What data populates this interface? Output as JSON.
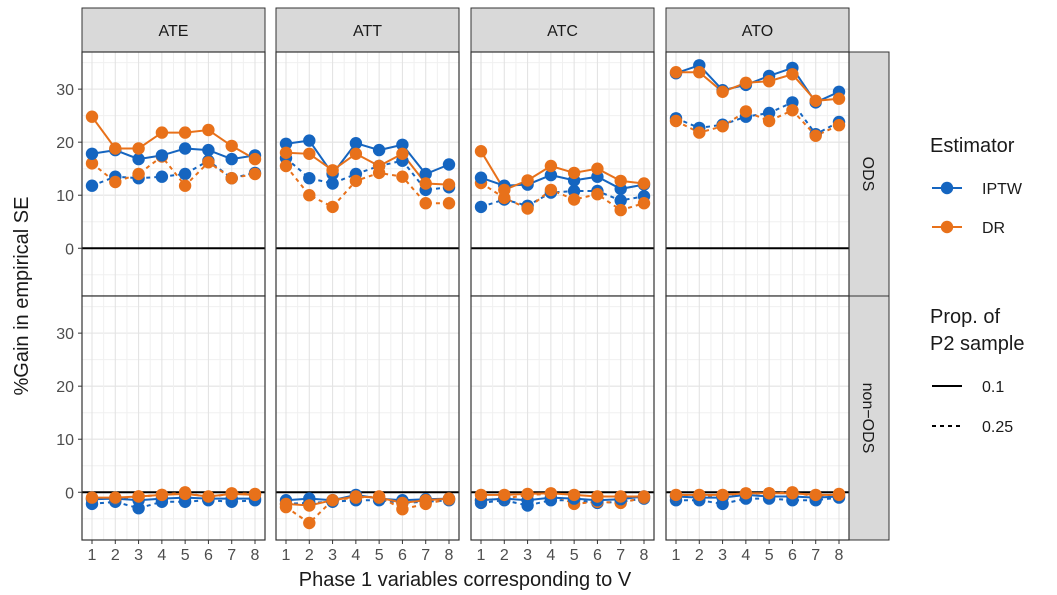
{
  "chart_data": {
    "type": "line",
    "title": "",
    "xlabel": "Phase 1 variables corresponding to V",
    "ylabel": "%Gain in empirical SE",
    "x": [
      1,
      2,
      3,
      4,
      5,
      6,
      7,
      8
    ],
    "x_ticks": [
      "1",
      "2",
      "3",
      "4",
      "5",
      "6",
      "7",
      "8"
    ],
    "ylim": [
      -9,
      37
    ],
    "y_ticks": [
      0,
      10,
      20,
      30
    ],
    "y_tick_labels": [
      "0",
      "10",
      "20",
      "30"
    ],
    "grid": true,
    "reference_line": 0,
    "facet_columns": [
      "ATE",
      "ATT",
      "ATC",
      "ATO"
    ],
    "facet_rows": [
      "ODS",
      "non−ODS"
    ],
    "legend": {
      "placement": "right",
      "estimator_title": "Estimator",
      "estimators": [
        {
          "name": "IPTW",
          "color": "#1565c0"
        },
        {
          "name": "DR",
          "color": "#e8711a"
        }
      ],
      "proportion_title_line1": "Prop. of",
      "proportion_title_line2": "P2 sample",
      "proportions": [
        {
          "name": "0.1",
          "linetype": "solid"
        },
        {
          "name": "0.25",
          "linetype": "dashed"
        }
      ]
    },
    "panels": [
      {
        "row": "ODS",
        "col": "ATE",
        "series": [
          {
            "estimator": "IPTW",
            "prop": "0.1",
            "values": [
              17.8,
              18.5,
              16.8,
              17.5,
              18.8,
              18.5,
              16.8,
              17.5
            ]
          },
          {
            "estimator": "IPTW",
            "prop": "0.25",
            "values": [
              11.8,
              13.5,
              13.2,
              13.5,
              14.0,
              16.5,
              13.2,
              14.2
            ]
          },
          {
            "estimator": "DR",
            "prop": "0.1",
            "values": [
              24.8,
              18.8,
              18.8,
              21.8,
              21.8,
              22.3,
              19.3,
              16.8
            ]
          },
          {
            "estimator": "DR",
            "prop": "0.25",
            "values": [
              16.0,
              12.5,
              14.0,
              17.3,
              11.8,
              16.2,
              13.2,
              14.0
            ]
          }
        ]
      },
      {
        "row": "ODS",
        "col": "ATT",
        "series": [
          {
            "estimator": "IPTW",
            "prop": "0.1",
            "values": [
              19.7,
              20.3,
              14.0,
              19.8,
              18.5,
              19.5,
              14.0,
              15.8
            ]
          },
          {
            "estimator": "IPTW",
            "prop": "0.25",
            "values": [
              17.0,
              13.2,
              12.2,
              14.0,
              15.5,
              16.5,
              11.0,
              11.5
            ]
          },
          {
            "estimator": "DR",
            "prop": "0.1",
            "values": [
              18.0,
              17.8,
              14.7,
              17.8,
              15.5,
              17.8,
              12.2,
              12.0
            ]
          },
          {
            "estimator": "DR",
            "prop": "0.25",
            "values": [
              15.5,
              10.0,
              7.8,
              12.7,
              14.2,
              13.5,
              8.5,
              8.5
            ]
          }
        ]
      },
      {
        "row": "ODS",
        "col": "ATC",
        "series": [
          {
            "estimator": "IPTW",
            "prop": "0.1",
            "values": [
              13.3,
              11.8,
              12.0,
              13.8,
              12.8,
              13.5,
              11.2,
              12.0
            ]
          },
          {
            "estimator": "IPTW",
            "prop": "0.25",
            "values": [
              7.8,
              9.2,
              8.0,
              10.5,
              10.8,
              10.8,
              9.0,
              9.8
            ]
          },
          {
            "estimator": "DR",
            "prop": "0.1",
            "values": [
              18.3,
              11.0,
              12.8,
              15.5,
              14.2,
              15.0,
              12.7,
              12.2
            ]
          },
          {
            "estimator": "DR",
            "prop": "0.25",
            "values": [
              12.3,
              9.5,
              7.5,
              11.0,
              9.2,
              10.2,
              7.2,
              8.5
            ]
          }
        ]
      },
      {
        "row": "ODS",
        "col": "ATO",
        "series": [
          {
            "estimator": "IPTW",
            "prop": "0.1",
            "values": [
              33.0,
              34.5,
              29.8,
              30.8,
              32.5,
              34.0,
              27.5,
              29.5
            ]
          },
          {
            "estimator": "IPTW",
            "prop": "0.25",
            "values": [
              24.5,
              22.7,
              23.3,
              24.8,
              25.5,
              27.5,
              21.5,
              23.8
            ]
          },
          {
            "estimator": "DR",
            "prop": "0.1",
            "values": [
              33.2,
              33.2,
              29.5,
              31.2,
              31.5,
              32.8,
              27.8,
              28.2
            ]
          },
          {
            "estimator": "DR",
            "prop": "0.25",
            "values": [
              24.0,
              21.8,
              23.0,
              25.8,
              24.0,
              26.0,
              21.2,
              23.2
            ]
          }
        ]
      },
      {
        "row": "non−ODS",
        "col": "ATE",
        "series": [
          {
            "estimator": "IPTW",
            "prop": "0.1",
            "values": [
              -1.3,
              -1.2,
              -1.5,
              -1.2,
              -1.0,
              -1.2,
              -1.2,
              -1.2
            ]
          },
          {
            "estimator": "IPTW",
            "prop": "0.25",
            "values": [
              -2.2,
              -1.8,
              -3.0,
              -1.8,
              -1.8,
              -1.5,
              -1.8,
              -1.5
            ]
          },
          {
            "estimator": "DR",
            "prop": "0.1",
            "values": [
              -1.0,
              -1.0,
              -0.8,
              -0.5,
              -0.3,
              -0.8,
              -0.3,
              -0.5
            ]
          },
          {
            "estimator": "DR",
            "prop": "0.25",
            "values": [
              -1.2,
              -1.2,
              -0.8,
              -0.5,
              0.0,
              -1.0,
              -0.2,
              -0.3
            ]
          }
        ]
      },
      {
        "row": "non−ODS",
        "col": "ATT",
        "series": [
          {
            "estimator": "IPTW",
            "prop": "0.1",
            "values": [
              -1.5,
              -1.2,
              -1.5,
              -0.5,
              -1.2,
              -1.5,
              -1.3,
              -1.2
            ]
          },
          {
            "estimator": "IPTW",
            "prop": "0.25",
            "values": [
              -2.2,
              -2.0,
              -1.8,
              -1.5,
              -1.5,
              -2.0,
              -1.8,
              -1.5
            ]
          },
          {
            "estimator": "DR",
            "prop": "0.1",
            "values": [
              -2.2,
              -2.5,
              -1.5,
              -0.8,
              -1.0,
              -2.0,
              -1.5,
              -1.2
            ]
          },
          {
            "estimator": "DR",
            "prop": "0.25",
            "values": [
              -2.8,
              -5.8,
              -1.5,
              -1.0,
              -0.8,
              -3.2,
              -2.2,
              -1.3
            ]
          }
        ]
      },
      {
        "row": "non−ODS",
        "col": "ATC",
        "series": [
          {
            "estimator": "IPTW",
            "prop": "0.1",
            "values": [
              -1.5,
              -1.2,
              -1.5,
              -1.0,
              -1.2,
              -1.5,
              -1.3,
              -0.8
            ]
          },
          {
            "estimator": "IPTW",
            "prop": "0.25",
            "values": [
              -2.0,
              -1.5,
              -2.5,
              -1.5,
              -1.5,
              -2.0,
              -1.8,
              -1.2
            ]
          },
          {
            "estimator": "DR",
            "prop": "0.1",
            "values": [
              -0.5,
              -0.5,
              -0.3,
              -0.2,
              -0.5,
              -0.8,
              -0.8,
              -0.8
            ]
          },
          {
            "estimator": "DR",
            "prop": "0.25",
            "values": [
              -1.5,
              -1.2,
              -0.5,
              -0.3,
              -2.2,
              -1.8,
              -2.0,
              -1.0
            ]
          }
        ]
      },
      {
        "row": "non−ODS",
        "col": "ATO",
        "series": [
          {
            "estimator": "IPTW",
            "prop": "0.1",
            "values": [
              -0.8,
              -1.0,
              -1.0,
              -0.5,
              -0.8,
              -0.8,
              -1.0,
              -0.8
            ]
          },
          {
            "estimator": "IPTW",
            "prop": "0.25",
            "values": [
              -1.5,
              -1.5,
              -2.2,
              -1.2,
              -1.2,
              -1.5,
              -1.5,
              -1.0
            ]
          },
          {
            "estimator": "DR",
            "prop": "0.1",
            "values": [
              -0.5,
              -0.5,
              -0.5,
              -0.2,
              -0.2,
              -0.2,
              -0.5,
              -0.5
            ]
          },
          {
            "estimator": "DR",
            "prop": "0.25",
            "values": [
              -0.8,
              -0.8,
              -0.8,
              -0.3,
              -0.2,
              0.0,
              -0.8,
              -0.3
            ]
          }
        ]
      }
    ]
  }
}
